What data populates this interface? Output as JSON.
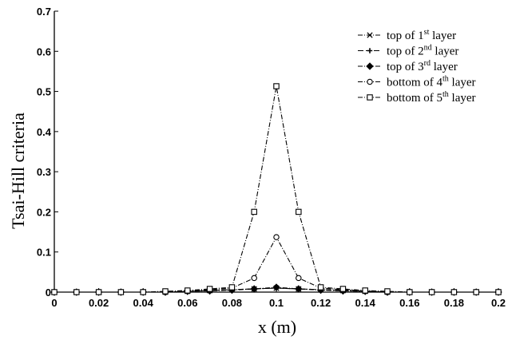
{
  "chart_data": {
    "type": "line",
    "xlabel": "x (m)",
    "ylabel": "Tsai-Hill criteria",
    "xlim": [
      0,
      0.2
    ],
    "ylim": [
      0,
      0.7
    ],
    "x_ticks": [
      "0",
      "0.02",
      "0.04",
      "0.06",
      "0.08",
      "0.1",
      "0.12",
      "0.14",
      "0.16",
      "0.18",
      "0.2"
    ],
    "y_ticks": [
      "0",
      "0.1",
      "0.2",
      "0.3",
      "0.4",
      "0.5",
      "0.6",
      "0.7"
    ],
    "legend_position": "top-right",
    "grid": false,
    "x": [
      0,
      0.01,
      0.02,
      0.03,
      0.04,
      0.05,
      0.06,
      0.07,
      0.08,
      0.09,
      0.1,
      0.11,
      0.12,
      0.13,
      0.14,
      0.15,
      0.16,
      0.17,
      0.18,
      0.19,
      0.2
    ],
    "series": [
      {
        "name": "top of 1st layer",
        "name_parts": [
          "top of 1",
          "st",
          " layer"
        ],
        "marker": "x",
        "dash": "6,2,1,2",
        "values": [
          0,
          0,
          0,
          0,
          0,
          0,
          0.002,
          0.004,
          0.006,
          0.008,
          0.01,
          0.008,
          0.006,
          0.004,
          0.002,
          0,
          0,
          0,
          0,
          0,
          0
        ]
      },
      {
        "name": "top of 2nd layer",
        "name_parts": [
          "top of 2",
          "nd",
          " layer"
        ],
        "marker": "plus",
        "dash": "7,3",
        "values": [
          0,
          0,
          0,
          0,
          0,
          0,
          0.002,
          0.004,
          0.006,
          0.008,
          0.01,
          0.008,
          0.006,
          0.004,
          0.002,
          0,
          0,
          0,
          0,
          0,
          0
        ]
      },
      {
        "name": "top of 3rd layer",
        "name_parts": [
          "top of 3",
          "rd",
          " layer"
        ],
        "marker": "diamond",
        "dash": "6,2,1,2",
        "values": [
          0,
          0,
          0,
          0,
          0,
          0,
          0.002,
          0.003,
          0.005,
          0.008,
          0.012,
          0.008,
          0.005,
          0.003,
          0.002,
          0,
          0,
          0,
          0,
          0,
          0
        ]
      },
      {
        "name": "bottom of 4th layer",
        "name_parts": [
          "bottom of 4",
          "th",
          " layer"
        ],
        "marker": "circle",
        "dash": "6,2,1,2",
        "values": [
          0,
          0,
          0,
          0,
          0,
          0,
          0.003,
          0.006,
          0.01,
          0.035,
          0.137,
          0.035,
          0.01,
          0.006,
          0.003,
          0,
          0,
          0,
          0,
          0,
          0
        ]
      },
      {
        "name": "bottom of 5th layer",
        "name_parts": [
          "bottom of 5",
          "th",
          " layer"
        ],
        "marker": "square",
        "dash": "6,2,1,2",
        "values": [
          0,
          0,
          0,
          0,
          0,
          0.002,
          0.004,
          0.008,
          0.012,
          0.2,
          0.513,
          0.2,
          0.012,
          0.008,
          0.004,
          0.002,
          0,
          0,
          0,
          0,
          0
        ]
      }
    ]
  }
}
